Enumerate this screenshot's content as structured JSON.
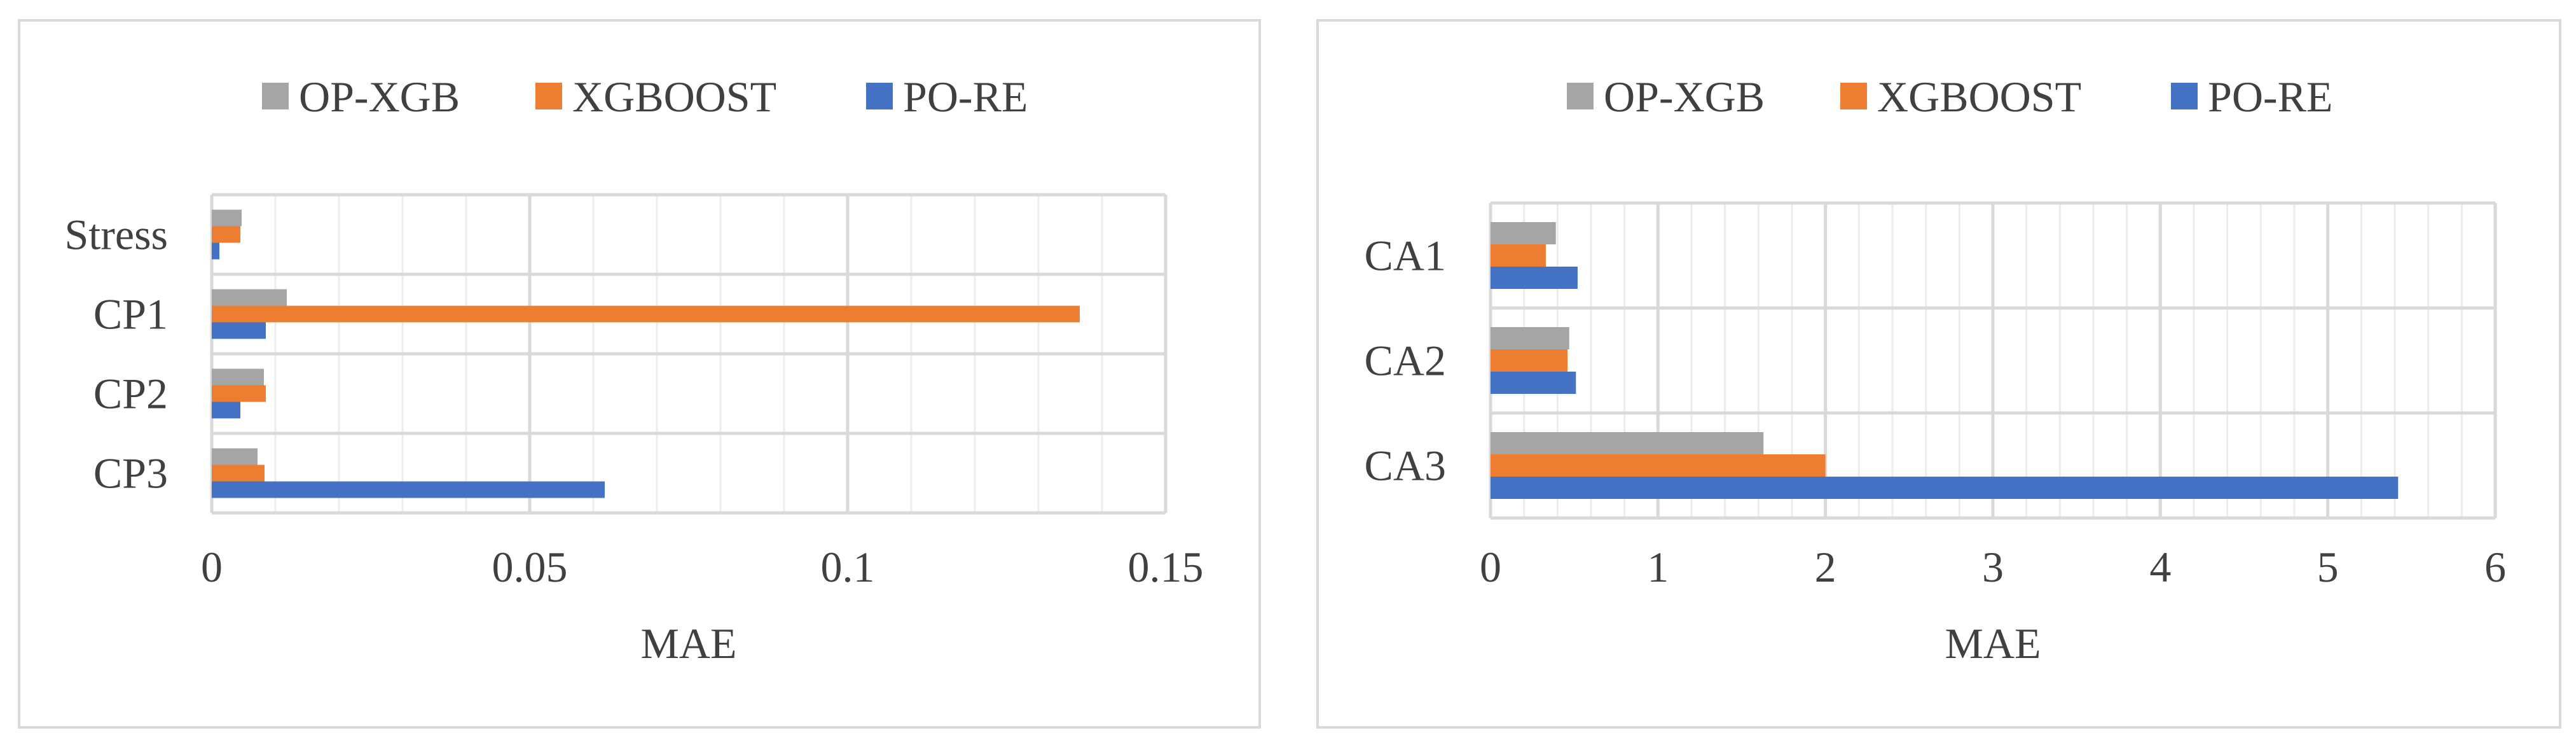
{
  "colors": {
    "OP-XGB": "#a5a5a5",
    "XGBOOST": "#ed7d31",
    "PO-RE": "#4472c4",
    "grid_major": "#d9d9d9",
    "grid_minor": "#ececec",
    "text": "#404040"
  },
  "chart_data": [
    {
      "type": "bar",
      "orientation": "horizontal",
      "categories": [
        "Stress",
        "CP1",
        "CP2",
        "CP3"
      ],
      "series": [
        {
          "name": "OP-XGB",
          "values": [
            0.0047,
            0.0118,
            0.0082,
            0.0072
          ]
        },
        {
          "name": "XGBOOST",
          "values": [
            0.0045,
            0.1365,
            0.0085,
            0.0083
          ]
        },
        {
          "name": "PO-RE",
          "values": [
            0.0012,
            0.0085,
            0.0045,
            0.0618
          ]
        }
      ],
      "xlabel": "MAE",
      "xlim": [
        0,
        0.15
      ],
      "xticks": [
        "0",
        "0.05",
        "0.1",
        "0.15"
      ],
      "tick_values": [
        0,
        0.05,
        0.1,
        0.15
      ],
      "minor_per_major": 5,
      "legend_position": "top",
      "grid": true
    },
    {
      "type": "bar",
      "orientation": "horizontal",
      "categories": [
        "CA1",
        "CA2",
        "CA3"
      ],
      "series": [
        {
          "name": "OP-XGB",
          "values": [
            0.39,
            0.47,
            1.63
          ]
        },
        {
          "name": "XGBOOST",
          "values": [
            0.33,
            0.46,
            2.0
          ]
        },
        {
          "name": "PO-RE",
          "values": [
            0.52,
            0.51,
            5.42
          ]
        }
      ],
      "xlabel": "MAE",
      "xlim": [
        0,
        6
      ],
      "xticks": [
        "0",
        "1",
        "2",
        "3",
        "4",
        "5",
        "6"
      ],
      "tick_values": [
        0,
        1,
        2,
        3,
        4,
        5,
        6
      ],
      "minor_per_major": 5,
      "legend_position": "top",
      "grid": true
    }
  ]
}
